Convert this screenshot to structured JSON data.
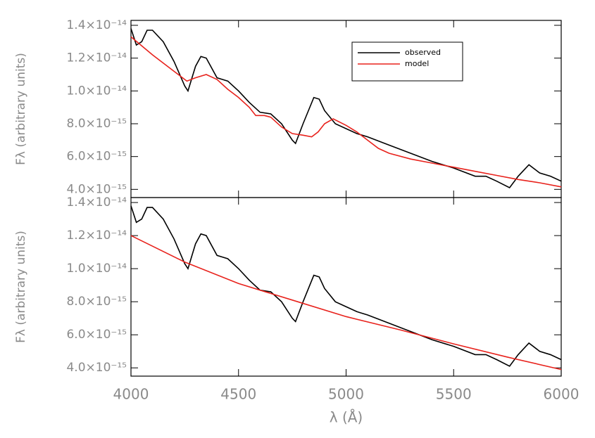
{
  "chart_data": [
    {
      "type": "line",
      "ylabel": "Fλ (arbitrary units)",
      "xlim": [
        4000,
        6000
      ],
      "xticks": [
        4000,
        4500,
        5000,
        5500,
        6000
      ],
      "ylim": [
        3.5e-15,
        1.43e-14
      ],
      "yticks": [
        {
          "value": 4e-15,
          "label": "4.0×10⁻¹⁵"
        },
        {
          "value": 6e-15,
          "label": "6.0×10⁻¹⁵"
        },
        {
          "value": 8e-15,
          "label": "8.0×10⁻¹⁵"
        },
        {
          "value": 1e-14,
          "label": "1.0×10⁻¹⁴"
        },
        {
          "value": 1.2e-14,
          "label": "1.2×10⁻¹⁴"
        },
        {
          "value": 1.4e-14,
          "label": "1.4×10⁻¹⁴"
        }
      ],
      "legend": "upper right",
      "series": [
        {
          "name": "observed",
          "color": "#000000",
          "x": [
            4000,
            4025,
            4050,
            4075,
            4100,
            4150,
            4200,
            4250,
            4265,
            4300,
            4325,
            4350,
            4400,
            4425,
            4450,
            4500,
            4550,
            4600,
            4650,
            4700,
            4750,
            4765,
            4800,
            4850,
            4875,
            4900,
            4950,
            5000,
            5050,
            5100,
            5200,
            5300,
            5400,
            5500,
            5600,
            5650,
            5700,
            5760,
            5800,
            5850,
            5900,
            5950,
            6000
          ],
          "values": [
            1.38e-14,
            1.28e-14,
            1.3e-14,
            1.37e-14,
            1.37e-14,
            1.3e-14,
            1.18e-14,
            1.03e-14,
            1e-14,
            1.15e-14,
            1.21e-14,
            1.2e-14,
            1.08e-14,
            1.07e-14,
            1.06e-14,
            1e-14,
            9.3e-15,
            8.7e-15,
            8.6e-15,
            8e-15,
            7e-15,
            6.8e-15,
            8e-15,
            9.6e-15,
            9.5e-15,
            8.8e-15,
            8e-15,
            7.7e-15,
            7.4e-15,
            7.2e-15,
            6.7e-15,
            6.2e-15,
            5.7e-15,
            5.3e-15,
            4.8e-15,
            4.8e-15,
            4.5e-15,
            4.1e-15,
            4.8e-15,
            5.5e-15,
            5e-15,
            4.8e-15,
            4.5e-15
          ]
        },
        {
          "name": "model",
          "color": "#e8221c",
          "x": [
            4000,
            4100,
            4200,
            4260,
            4300,
            4350,
            4400,
            4450,
            4500,
            4550,
            4580,
            4620,
            4650,
            4700,
            4750,
            4800,
            4840,
            4870,
            4900,
            4940,
            5000,
            5050,
            5100,
            5150,
            5200,
            5300,
            5400,
            5500,
            5600,
            5700,
            5800,
            5900,
            6000
          ],
          "values": [
            1.33e-14,
            1.22e-14,
            1.12e-14,
            1.06e-14,
            1.08e-14,
            1.1e-14,
            1.07e-14,
            1.01e-14,
            9.6e-15,
            9e-15,
            8.5e-15,
            8.5e-15,
            8.4e-15,
            7.8e-15,
            7.4e-15,
            7.3e-15,
            7.2e-15,
            7.5e-15,
            8e-15,
            8.3e-15,
            7.9e-15,
            7.5e-15,
            7e-15,
            6.5e-15,
            6.2e-15,
            5.85e-15,
            5.6e-15,
            5.35e-15,
            5.1e-15,
            4.85e-15,
            4.6e-15,
            4.4e-15,
            4.15e-15
          ]
        }
      ]
    },
    {
      "type": "line",
      "ylabel": "Fλ (arbitrary units)",
      "xlabel": "λ (Å)",
      "xlim": [
        4000,
        6000
      ],
      "xticks": [
        4000,
        4500,
        5000,
        5500,
        6000
      ],
      "ylim": [
        3.5e-15,
        1.43e-14
      ],
      "yticks": [
        {
          "value": 4e-15,
          "label": "4.0×10⁻¹⁵"
        },
        {
          "value": 6e-15,
          "label": "6.0×10⁻¹⁵"
        },
        {
          "value": 8e-15,
          "label": "8.0×10⁻¹⁵"
        },
        {
          "value": 1e-14,
          "label": "1.0×10⁻¹⁴"
        },
        {
          "value": 1.2e-14,
          "label": "1.2×10⁻¹⁴"
        },
        {
          "value": 1.4e-14,
          "label": "1.4×10⁻¹⁴"
        }
      ],
      "series": [
        {
          "color": "#000000",
          "x": [
            4000,
            4025,
            4050,
            4075,
            4100,
            4150,
            4200,
            4250,
            4265,
            4300,
            4325,
            4350,
            4400,
            4425,
            4450,
            4500,
            4550,
            4600,
            4650,
            4700,
            4750,
            4765,
            4800,
            4850,
            4875,
            4900,
            4950,
            5000,
            5050,
            5100,
            5200,
            5300,
            5400,
            5500,
            5600,
            5650,
            5700,
            5760,
            5800,
            5850,
            5900,
            5950,
            6000
          ],
          "values": [
            1.38e-14,
            1.28e-14,
            1.3e-14,
            1.37e-14,
            1.37e-14,
            1.3e-14,
            1.18e-14,
            1.03e-14,
            1e-14,
            1.15e-14,
            1.21e-14,
            1.2e-14,
            1.08e-14,
            1.07e-14,
            1.06e-14,
            1e-14,
            9.3e-15,
            8.7e-15,
            8.6e-15,
            8e-15,
            7e-15,
            6.8e-15,
            8e-15,
            9.6e-15,
            9.5e-15,
            8.8e-15,
            8e-15,
            7.7e-15,
            7.4e-15,
            7.2e-15,
            6.7e-15,
            6.2e-15,
            5.7e-15,
            5.3e-15,
            4.8e-15,
            4.8e-15,
            4.5e-15,
            4.1e-15,
            4.8e-15,
            5.5e-15,
            5e-15,
            4.8e-15,
            4.5e-15
          ]
        },
        {
          "color": "#e8221c",
          "x": [
            4000,
            4250,
            4500,
            4750,
            5000,
            5250,
            5500,
            5750,
            6000
          ],
          "values": [
            1.2e-14,
            1.04e-14,
            9.1e-15,
            8.1e-15,
            7.1e-15,
            6.3e-15,
            5.45e-15,
            4.65e-15,
            3.9e-15
          ]
        }
      ]
    }
  ]
}
